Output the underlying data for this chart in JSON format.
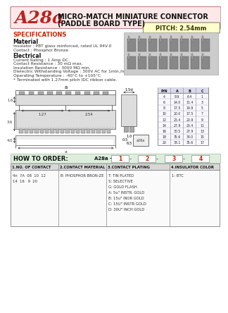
{
  "title_part": "A28a",
  "title_main": "MICRO-MATCH MINIATURE CONNECTOR",
  "title_sub": "(PADDLE BOARD TYPE)",
  "pitch_label": "PITCH: 2.54mm",
  "bg_color": "#ffffff",
  "header_bg": "#fce8e8",
  "header_border": "#c08080",
  "pitch_bg": "#ffffcc",
  "pitch_border": "#888866",
  "specs_title": "SPECIFICATIONS",
  "specs_color": "#cc2200",
  "material_title": "Material",
  "material_lines": [
    "Insulator : PBT glass reinforced, rated UL 94V-0",
    "Contact : Phosphor Bronze"
  ],
  "electrical_title": "Electrical",
  "electrical_lines": [
    "Current Rating : 1 Amp DC",
    "Contact Resistance : 30 mΩ max.",
    "Insulation Resistance : 3000 MΩ min.",
    "Dielectric Withstanding Voltage : 300V AC for 1min./n",
    "Operating Temperature : -40°C to +105°C",
    "* Terminated with 1.27mm pitch IDC ribbon cable."
  ],
  "how_to_order": "HOW TO ORDER:",
  "how_bg": "#ddeedd",
  "part_number": "A28a -",
  "order_nums": [
    "1",
    "2",
    "3",
    "4"
  ],
  "col1_header": "1.NO. OF CONTACT",
  "col2_header": "2.CONTACT MATERIAL",
  "col3_header": "3.CONTACT PLATING",
  "col4_header": "4.INSULATOR COLOR",
  "col1_vals": [
    "4n  7A  08  10  12",
    "14  16   9  20"
  ],
  "col2_vals": [
    "B: PHOSPHOR BRON-ZE"
  ],
  "col3_vals": [
    "T: TIN PLATED",
    "S: SELECTIVE",
    "G: GOLD FLASH",
    "A: 5u\" INSTR. GOLD",
    "B: 15u\" INOR GOLD",
    "C: 15U\" INSTR GOLD",
    "D: 30U\" INCH GOLD"
  ],
  "col4_vals": [
    "1: BTC"
  ],
  "dim_table_headers": [
    "P/N",
    "A",
    "B",
    "C"
  ],
  "dim_table_rows": [
    [
      "4",
      "8.9",
      "6.4",
      "1"
    ],
    [
      "6",
      "14.0",
      "11.4",
      "3"
    ],
    [
      "8",
      "17.5",
      "14.9",
      "5"
    ],
    [
      "10",
      "20.0",
      "17.5",
      "7"
    ],
    [
      "12",
      "25.4",
      "22.9",
      "9"
    ],
    [
      "14",
      "27.9",
      "25.4",
      "11"
    ],
    [
      "16",
      "30.5",
      "27.9",
      "13"
    ],
    [
      "18",
      "35.6",
      "33.0",
      "15"
    ],
    [
      "20",
      "38.1",
      "35.6",
      "17"
    ]
  ],
  "dim_label_a": "a",
  "dim_label_127": "1.27",
  "dim_label_254": "2.54",
  "dim_label_16": "1.6",
  "dim_label_36": "3.6",
  "dim_label_40": "4.0",
  "dim_label_15d": "1.5d",
  "dim_label_10": "1.0",
  "dim_label_05": "0.5",
  "dim_label_65": "6.5"
}
